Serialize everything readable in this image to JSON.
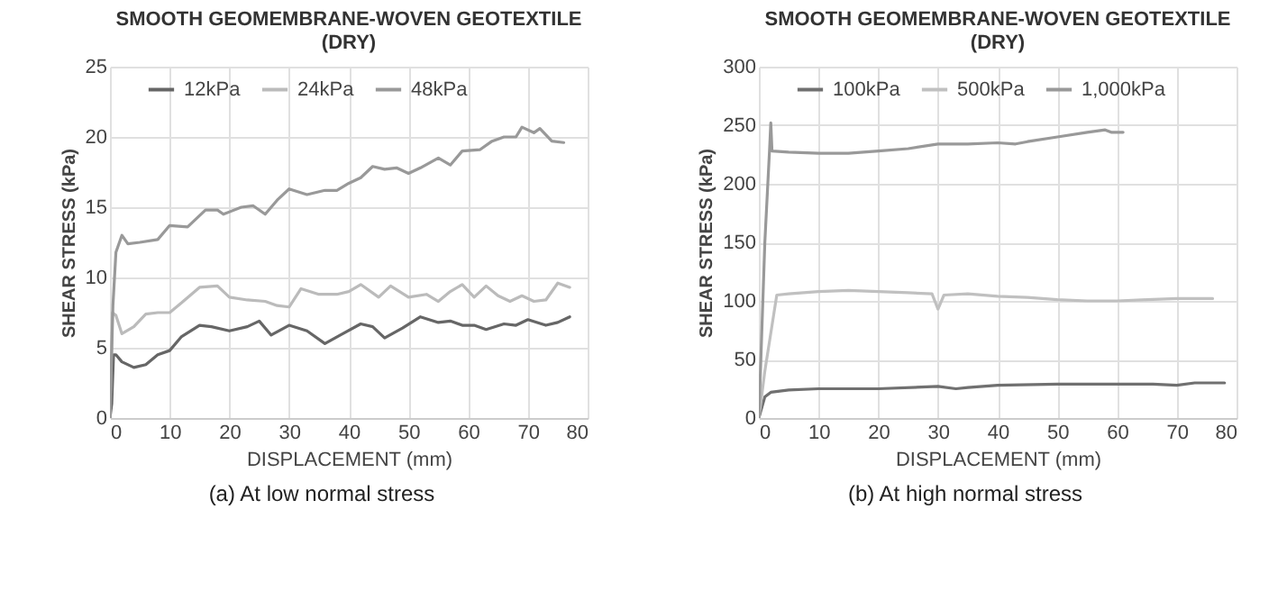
{
  "chart_data": [
    {
      "type": "line",
      "title": "SMOOTH GEOMEMBRANE-WOVEN GEOTEXTILE\n(DRY)",
      "xlabel": "DISPLACEMENT (mm)",
      "ylabel": "SHEAR STRESS (kPa)",
      "xlim": [
        0,
        80
      ],
      "xticks": [
        0,
        10,
        20,
        30,
        40,
        50,
        60,
        70,
        80
      ],
      "ylim": [
        0,
        25
      ],
      "yticks": [
        0,
        5,
        10,
        15,
        20,
        25
      ],
      "grid": true,
      "legend": "top",
      "annotations": [
        "(a) At low normal stress"
      ],
      "series": [
        {
          "name": "12kPa",
          "color": "#666666",
          "x": [
            0,
            0.3,
            0.6,
            1,
            2,
            4,
            6,
            8,
            10,
            12,
            15,
            17,
            20,
            23,
            25,
            27,
            30,
            33,
            36,
            39,
            42,
            44,
            46,
            49,
            52,
            55,
            57,
            59,
            61,
            63,
            66,
            68,
            70,
            73,
            75,
            77
          ],
          "values": [
            0,
            1,
            4.5,
            4.5,
            4,
            3.6,
            3.8,
            4.5,
            4.8,
            5.8,
            6.6,
            6.5,
            6.2,
            6.5,
            6.9,
            5.9,
            6.6,
            6.2,
            5.3,
            6,
            6.7,
            6.5,
            5.7,
            6.4,
            7.2,
            6.8,
            6.9,
            6.6,
            6.6,
            6.3,
            6.7,
            6.6,
            7,
            6.6,
            6.8,
            7.2
          ]
        },
        {
          "name": "24kPa",
          "color": "#bbbbbb",
          "x": [
            0,
            0.4,
            1,
            2,
            4,
            6,
            8,
            10,
            12,
            15,
            18,
            20,
            23,
            26,
            28,
            30,
            32,
            35,
            38,
            40,
            42,
            45,
            47,
            50,
            53,
            55,
            57,
            59,
            61,
            63,
            65,
            67,
            69,
            71,
            73,
            75,
            77
          ],
          "values": [
            0,
            7.5,
            7.3,
            6,
            6.5,
            7.4,
            7.5,
            7.5,
            8.2,
            9.3,
            9.4,
            8.6,
            8.4,
            8.3,
            8,
            7.9,
            9.2,
            8.8,
            8.8,
            9,
            9.5,
            8.6,
            9.4,
            8.6,
            8.8,
            8.3,
            9,
            9.5,
            8.6,
            9.4,
            8.7,
            8.3,
            8.7,
            8.3,
            8.4,
            9.6,
            9.3
          ]
        },
        {
          "name": "48kPa",
          "color": "#999999",
          "x": [
            0,
            0.5,
            1,
            2,
            3,
            5,
            8,
            10,
            13,
            16,
            18,
            19,
            22,
            24,
            26,
            28,
            30,
            33,
            36,
            38,
            40,
            42,
            44,
            46,
            48,
            50,
            52,
            55,
            57,
            59,
            62,
            64,
            66,
            68,
            69,
            71,
            72,
            74,
            76
          ],
          "values": [
            0,
            8,
            11.8,
            13,
            12.4,
            12.5,
            12.7,
            13.7,
            13.6,
            14.8,
            14.8,
            14.5,
            15,
            15.1,
            14.5,
            15.5,
            16.3,
            15.9,
            16.2,
            16.2,
            16.7,
            17.1,
            17.9,
            17.7,
            17.8,
            17.4,
            17.8,
            18.5,
            18,
            19,
            19.1,
            19.7,
            20,
            20,
            20.7,
            20.3,
            20.6,
            19.7,
            19.6
          ]
        }
      ]
    },
    {
      "type": "line",
      "title": "SMOOTH GEOMEMBRANE-WOVEN GEOTEXTILE\n(DRY)",
      "xlabel": "DISPLACEMENT (mm)",
      "ylabel": "SHEAR STRESS (kPa)",
      "xlim": [
        0,
        80
      ],
      "xticks": [
        0,
        10,
        20,
        30,
        40,
        50,
        60,
        70,
        80
      ],
      "ylim": [
        0,
        300
      ],
      "yticks": [
        0,
        50,
        100,
        150,
        200,
        250,
        300
      ],
      "grid": true,
      "legend": "top",
      "annotations": [
        "(b) At high normal stress"
      ],
      "series": [
        {
          "name": "100kPa",
          "color": "#707070",
          "x": [
            0,
            1,
            2,
            5,
            10,
            20,
            30,
            33,
            35,
            40,
            50,
            60,
            66,
            70,
            73,
            78
          ],
          "values": [
            0,
            18,
            22,
            24,
            25,
            25,
            27,
            25,
            26,
            28,
            29,
            29,
            29,
            28,
            30,
            30
          ]
        },
        {
          "name": "500kPa",
          "color": "#c0c0c0",
          "x": [
            0,
            1,
            3,
            5,
            10,
            15,
            20,
            25,
            29,
            30,
            31,
            35,
            40,
            45,
            50,
            55,
            60,
            65,
            70,
            73,
            76
          ],
          "values": [
            0,
            40,
            105,
            106,
            108,
            109,
            108,
            107,
            106,
            93,
            105,
            106,
            104,
            103,
            101,
            100,
            100,
            101,
            102,
            102,
            102
          ]
        },
        {
          "name": "1,000kPa",
          "color": "#999999",
          "x": [
            0,
            1,
            1.8,
            2,
            2.2,
            5,
            10,
            15,
            20,
            25,
            30,
            35,
            40,
            43,
            45,
            50,
            55,
            58,
            59,
            61
          ],
          "values": [
            0,
            150,
            230,
            252,
            228,
            227,
            226,
            226,
            228,
            230,
            234,
            234,
            235,
            234,
            236,
            240,
            244,
            246,
            244,
            244
          ]
        }
      ]
    }
  ]
}
